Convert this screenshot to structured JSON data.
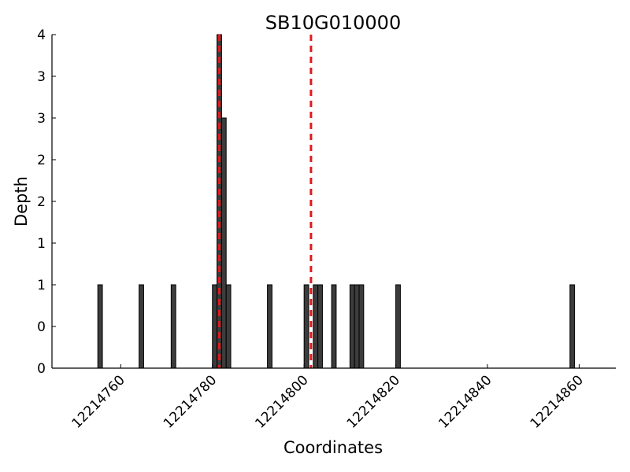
{
  "chart_data": {
    "type": "bar",
    "title": "SB10G010000",
    "xlabel": "Coordinates",
    "ylabel": "Depth",
    "xlim": [
      12214745,
      12214868
    ],
    "ylim": [
      0,
      4
    ],
    "bar_width": 1,
    "x_ticks": [
      12214760,
      12214780,
      12214800,
      12214820,
      12214840,
      12214860
    ],
    "y_tick_values": [
      0,
      0.5,
      1,
      1.5,
      2,
      2.5,
      3,
      3.5,
      4
    ],
    "y_tick_labels": [
      "0",
      "0",
      "1",
      "1",
      "2",
      "2",
      "3",
      "3",
      "4"
    ],
    "grid": false,
    "series": [
      {
        "x": [
          12214755,
          12214764,
          12214771,
          12214780,
          12214781,
          12214782,
          12214783,
          12214792,
          12214800,
          12214802,
          12214803,
          12214806,
          12214810,
          12214811,
          12214812,
          12214820,
          12214858
        ],
        "values": [
          1,
          1,
          1,
          1,
          4,
          3,
          1,
          1,
          1,
          1,
          1,
          1,
          1,
          1,
          1,
          1,
          1
        ]
      }
    ],
    "vertical_lines": [
      {
        "x": 12214781.5,
        "color": "#e31a1c",
        "style": "dashed"
      },
      {
        "x": 12214801.5,
        "color": "#e31a1c",
        "style": "dashed"
      }
    ]
  }
}
